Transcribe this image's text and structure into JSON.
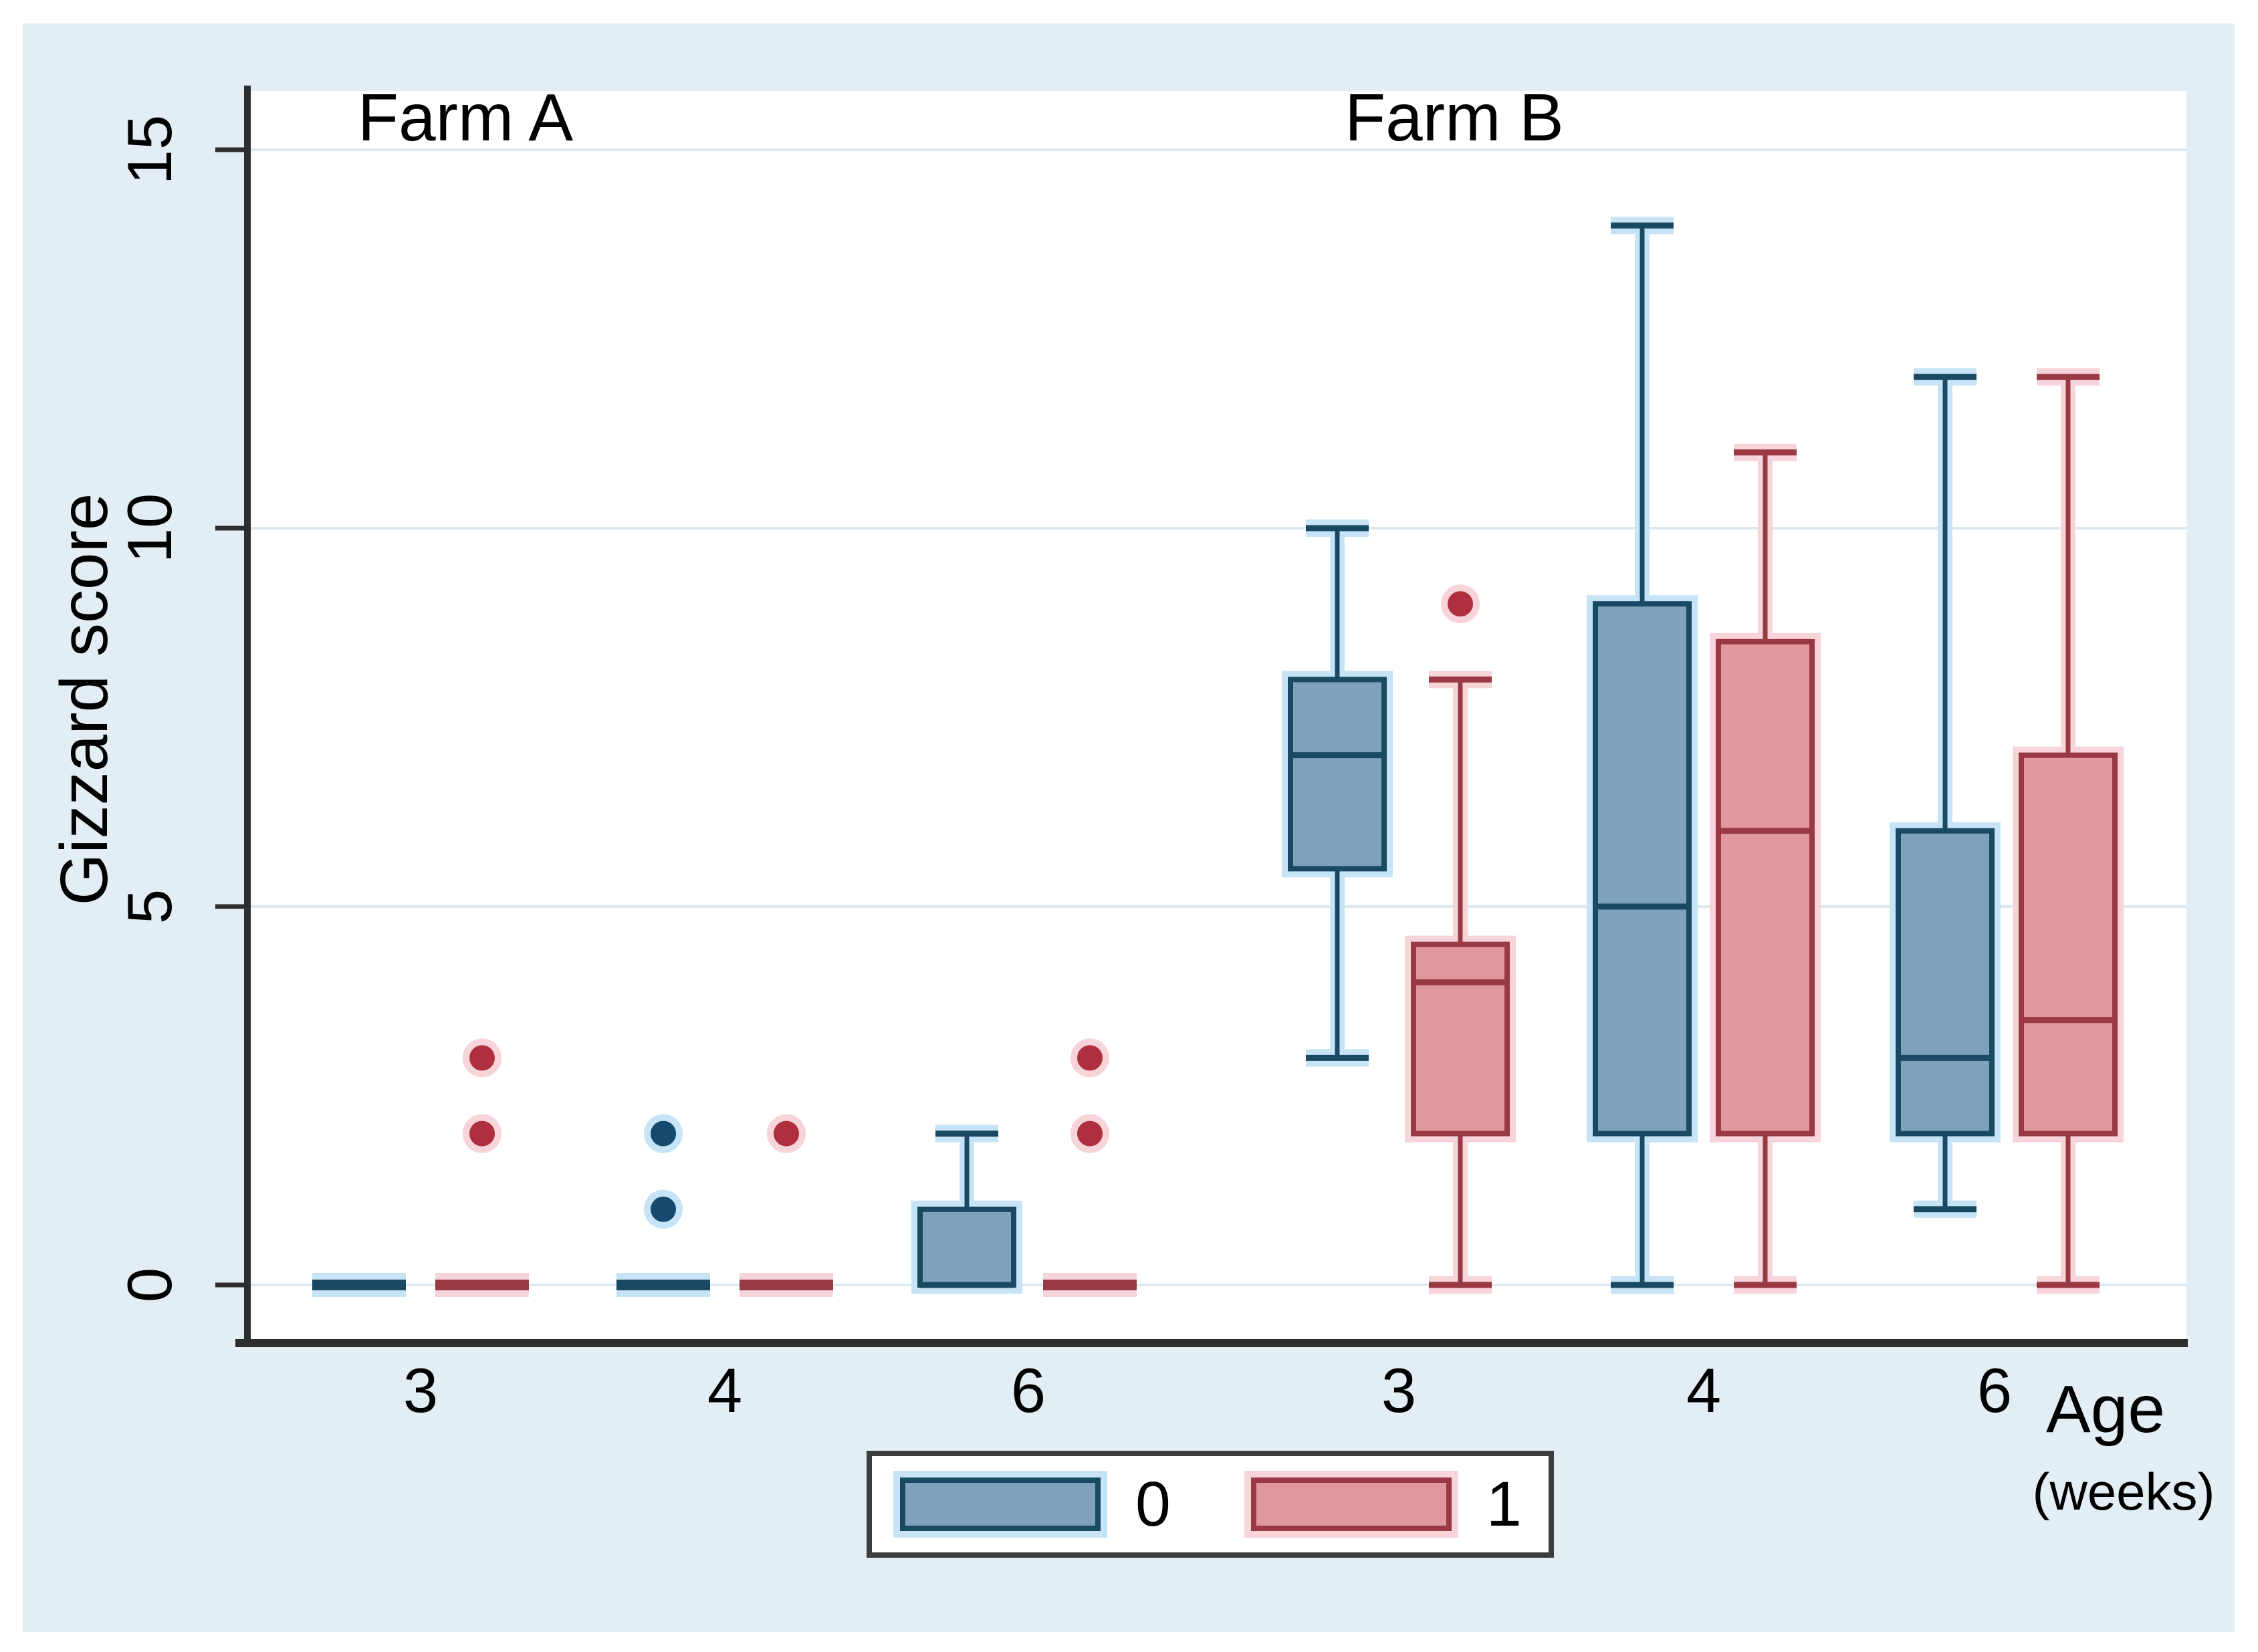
{
  "chart_data": {
    "type": "box",
    "title": "",
    "ylabel": "Gizzard score",
    "xlabel": "Age",
    "xlabel_unit": "(weeks)",
    "ylim": [
      -0.7,
      15.8
    ],
    "yticks": [
      0,
      5,
      10,
      15
    ],
    "ytick_labels": [
      "15",
      "10",
      "5",
      "0"
    ],
    "xtick_labels": [
      "3",
      "4",
      "6",
      "3",
      "4",
      "6"
    ],
    "grid": true,
    "legend_position": "bottom-center",
    "series": [
      {
        "label": "0",
        "fill": "#7fa1ba",
        "border": "#1a4a63",
        "halo": "#c6e4f6",
        "dot": "#134a6e"
      },
      {
        "label": "1",
        "fill": "#e0989e",
        "border": "#993943",
        "halo": "#f7d4d9",
        "dot": "#ae2f3d"
      }
    ],
    "panels": [
      {
        "label": "Farm A",
        "groups": [
          {
            "age": "3",
            "boxes": [
              {
                "series": "0",
                "q1": 0,
                "median": 0,
                "q3": 0,
                "whisker_low": 0,
                "whisker_high": 0,
                "outliers": []
              },
              {
                "series": "1",
                "q1": 0,
                "median": 0,
                "q3": 0,
                "whisker_low": 0,
                "whisker_high": 0,
                "outliers": [
                  2,
                  3
                ]
              }
            ]
          },
          {
            "age": "4",
            "boxes": [
              {
                "series": "0",
                "q1": 0,
                "median": 0,
                "q3": 0,
                "whisker_low": 0,
                "whisker_high": 0,
                "outliers": [
                  1,
                  2
                ]
              },
              {
                "series": "1",
                "q1": 0,
                "median": 0,
                "q3": 0,
                "whisker_low": 0,
                "whisker_high": 0,
                "outliers": [
                  2
                ]
              }
            ]
          },
          {
            "age": "6",
            "boxes": [
              {
                "series": "0",
                "q1": 0,
                "median": 0,
                "q3": 1,
                "whisker_low": 0,
                "whisker_high": 2,
                "outliers": []
              },
              {
                "series": "1",
                "q1": 0,
                "median": 0,
                "q3": 0,
                "whisker_low": 0,
                "whisker_high": 0,
                "outliers": [
                  2,
                  3
                ]
              }
            ]
          }
        ]
      },
      {
        "label": "Farm B",
        "groups": [
          {
            "age": "3",
            "boxes": [
              {
                "series": "0",
                "q1": 5.5,
                "median": 7,
                "q3": 8,
                "whisker_low": 3,
                "whisker_high": 10,
                "outliers": []
              },
              {
                "series": "1",
                "q1": 2,
                "median": 4,
                "q3": 4.5,
                "whisker_low": 0,
                "whisker_high": 8,
                "outliers": [
                  9
                ]
              }
            ]
          },
          {
            "age": "4",
            "boxes": [
              {
                "series": "0",
                "q1": 2,
                "median": 5,
                "q3": 9,
                "whisker_low": 0,
                "whisker_high": 14,
                "outliers": []
              },
              {
                "series": "1",
                "q1": 2,
                "median": 6,
                "q3": 8.5,
                "whisker_low": 0,
                "whisker_high": 11,
                "outliers": []
              }
            ]
          },
          {
            "age": "6",
            "boxes": [
              {
                "series": "0",
                "q1": 2,
                "median": 3,
                "q3": 6,
                "whisker_low": 1,
                "whisker_high": 12,
                "outliers": []
              },
              {
                "series": "1",
                "q1": 2,
                "median": 3.5,
                "q3": 7,
                "whisker_low": 0,
                "whisker_high": 12,
                "outliers": []
              }
            ]
          }
        ]
      }
    ],
    "colors": {
      "background": "#e2eef3",
      "plot_bg": "#ffffff",
      "gridline": "#dbe8ef",
      "axis": "#2e2e2e",
      "text": "#000000",
      "legend_border": "#3d3d3d"
    }
  }
}
